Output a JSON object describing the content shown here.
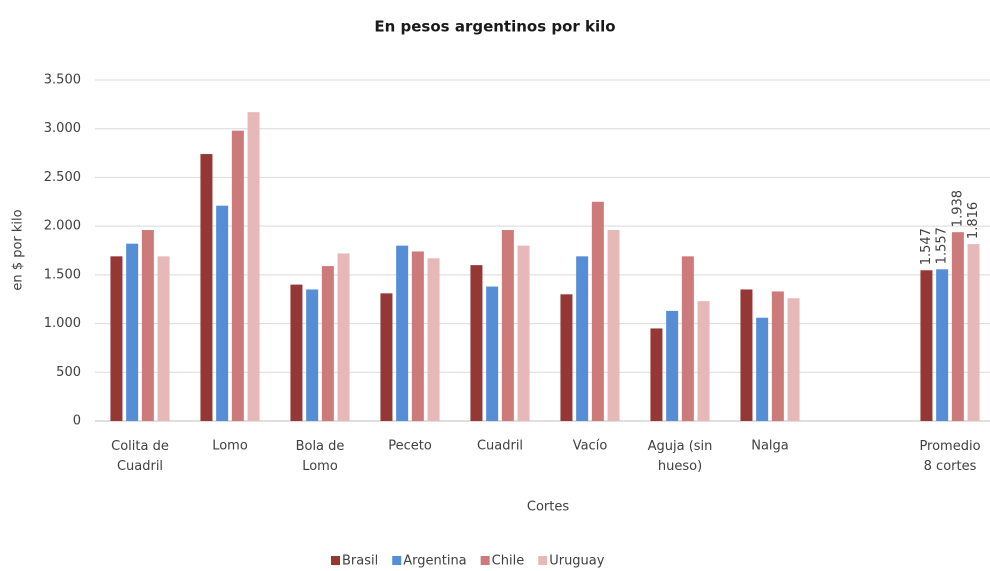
{
  "chart_data": {
    "type": "bar",
    "title": "En pesos argentinos por kilo",
    "x_label": "Cortes",
    "y_label": "en $ por kilo",
    "categories": [
      "Colita de Cuadril",
      "Lomo",
      "Bola de Lomo",
      "Peceto",
      "Cuadril",
      "Vacío",
      "Aguja (sin hueso)",
      "Nalga",
      null,
      "Promedio 8 cortes"
    ],
    "series": [
      {
        "name": "Brasil",
        "color": "#953735",
        "values": [
          1690,
          2740,
          1400,
          1310,
          1600,
          1300,
          950,
          1350,
          null,
          1547
        ],
        "value_labels": [
          null,
          null,
          null,
          null,
          null,
          null,
          null,
          null,
          null,
          "1.547"
        ]
      },
      {
        "name": "Argentina",
        "color": "#558ed5",
        "values": [
          1820,
          2210,
          1350,
          1800,
          1380,
          1690,
          1130,
          1060,
          null,
          1557
        ],
        "value_labels": [
          null,
          null,
          null,
          null,
          null,
          null,
          null,
          null,
          null,
          "1.557"
        ]
      },
      {
        "name": "Chile",
        "color": "#cd7b7a",
        "values": [
          1960,
          2980,
          1590,
          1740,
          1960,
          2250,
          1690,
          1330,
          null,
          1938
        ],
        "value_labels": [
          null,
          null,
          null,
          null,
          null,
          null,
          null,
          null,
          null,
          "1.938"
        ]
      },
      {
        "name": "Uruguay",
        "color": "#e6b9b8",
        "values": [
          1690,
          3170,
          1720,
          1670,
          1800,
          1960,
          1230,
          1260,
          null,
          1816
        ],
        "value_labels": [
          null,
          null,
          null,
          null,
          null,
          null,
          null,
          null,
          null,
          "1.816"
        ]
      }
    ],
    "ylim": [
      0,
      3500
    ],
    "yticks": [
      0,
      500,
      {
        "value": 1000,
        "label": "1.000"
      },
      {
        "value": 1500,
        "label": "1.500"
      },
      {
        "value": 2000,
        "label": "2.000"
      },
      {
        "value": 2500,
        "label": "2.500"
      },
      {
        "value": 3000,
        "label": "3.000"
      },
      {
        "value": 3500,
        "label": "3.500"
      }
    ],
    "grid": true,
    "legend": "bottom"
  }
}
